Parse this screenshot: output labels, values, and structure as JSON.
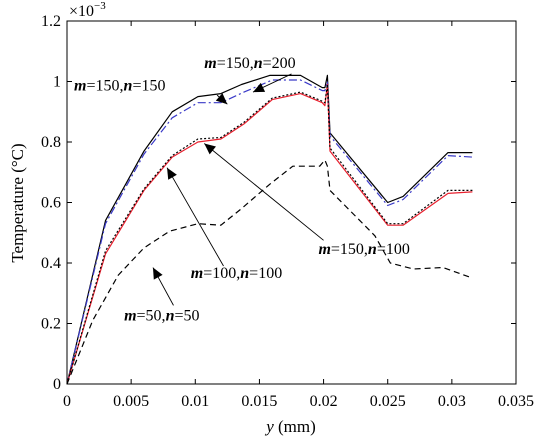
{
  "chart_data": {
    "type": "line",
    "xlabel_var": "y",
    "xlabel_unit": " (mm)",
    "ylabel": "Temperature (°C)",
    "y_multiplier": "×10",
    "y_multiplier_exp": "−3",
    "xlim": [
      0,
      0.035
    ],
    "ylim": [
      0,
      1.2
    ],
    "grid": false,
    "x_ticks": [
      "0",
      "0.005",
      "0.01",
      "0.015",
      "0.02",
      "0.025",
      "0.03",
      "0.035"
    ],
    "x_tick_values": [
      0,
      0.005,
      0.01,
      0.015,
      0.02,
      0.025,
      0.03,
      0.035
    ],
    "y_ticks": [
      "0",
      "0.2",
      "0.4",
      "0.6",
      "0.8",
      "1",
      "1.2"
    ],
    "y_tick_values": [
      0,
      0.2,
      0.4,
      0.6,
      0.8,
      1.0,
      1.2
    ],
    "series": [
      {
        "name": "m=150, n=200",
        "color": "#000000",
        "dash": "",
        "points": [
          [
            0,
            0
          ],
          [
            0.003,
            0.54
          ],
          [
            0.006,
            0.77
          ],
          [
            0.0082,
            0.9
          ],
          [
            0.0102,
            0.95
          ],
          [
            0.012,
            0.96
          ],
          [
            0.0136,
            0.99
          ],
          [
            0.0158,
            1.02
          ],
          [
            0.0182,
            1.02
          ],
          [
            0.0199,
            0.98
          ],
          [
            0.0201,
            0.98
          ],
          [
            0.0203,
            1.02
          ],
          [
            0.0205,
            0.83
          ],
          [
            0.025,
            0.6
          ],
          [
            0.0262,
            0.62
          ],
          [
            0.0297,
            0.765
          ],
          [
            0.0316,
            0.765
          ]
        ]
      },
      {
        "name": "m=150, n=150",
        "color": "#3a3ac8",
        "dash": "8 3 2 3",
        "points": [
          [
            0,
            0
          ],
          [
            0.003,
            0.53
          ],
          [
            0.006,
            0.76
          ],
          [
            0.0082,
            0.88
          ],
          [
            0.0102,
            0.93
          ],
          [
            0.012,
            0.93
          ],
          [
            0.0138,
            0.965
          ],
          [
            0.016,
            1.005
          ],
          [
            0.0182,
            1.005
          ],
          [
            0.0199,
            0.97
          ],
          [
            0.0201,
            0.97
          ],
          [
            0.0203,
            1.0
          ],
          [
            0.0205,
            0.82
          ],
          [
            0.025,
            0.59
          ],
          [
            0.0262,
            0.61
          ],
          [
            0.0297,
            0.755
          ],
          [
            0.0316,
            0.75
          ]
        ]
      },
      {
        "name": "m=150, n=100",
        "color": "#e8202e",
        "dash": "",
        "points": [
          [
            0,
            0
          ],
          [
            0.003,
            0.43
          ],
          [
            0.006,
            0.64
          ],
          [
            0.0082,
            0.75
          ],
          [
            0.0102,
            0.8
          ],
          [
            0.012,
            0.81
          ],
          [
            0.0138,
            0.86
          ],
          [
            0.016,
            0.94
          ],
          [
            0.0182,
            0.96
          ],
          [
            0.0199,
            0.93
          ],
          [
            0.0201,
            0.92
          ],
          [
            0.0203,
            0.99
          ],
          [
            0.0205,
            0.77
          ],
          [
            0.025,
            0.525
          ],
          [
            0.0262,
            0.525
          ],
          [
            0.0297,
            0.63
          ],
          [
            0.0316,
            0.635
          ]
        ]
      },
      {
        "name": "m=100, n=100",
        "color": "#000000",
        "dash": "2 2",
        "points": [
          [
            0,
            0
          ],
          [
            0.003,
            0.44
          ],
          [
            0.006,
            0.645
          ],
          [
            0.0082,
            0.755
          ],
          [
            0.0102,
            0.81
          ],
          [
            0.012,
            0.815
          ],
          [
            0.0138,
            0.865
          ],
          [
            0.016,
            0.945
          ],
          [
            0.0182,
            0.965
          ],
          [
            0.0199,
            0.935
          ],
          [
            0.0201,
            0.93
          ],
          [
            0.0203,
            0.99
          ],
          [
            0.0205,
            0.78
          ],
          [
            0.025,
            0.53
          ],
          [
            0.0262,
            0.53
          ],
          [
            0.0297,
            0.64
          ],
          [
            0.0316,
            0.64
          ]
        ]
      },
      {
        "name": "m=50, n=50",
        "color": "#000000",
        "dash": "6 4",
        "points": [
          [
            0,
            0
          ],
          [
            0.002,
            0.21
          ],
          [
            0.004,
            0.36
          ],
          [
            0.006,
            0.45
          ],
          [
            0.008,
            0.505
          ],
          [
            0.0102,
            0.53
          ],
          [
            0.012,
            0.525
          ],
          [
            0.0136,
            0.58
          ],
          [
            0.0158,
            0.66
          ],
          [
            0.0176,
            0.72
          ],
          [
            0.0197,
            0.72
          ],
          [
            0.0201,
            0.74
          ],
          [
            0.0203,
            0.72
          ],
          [
            0.0205,
            0.64
          ],
          [
            0.024,
            0.49
          ],
          [
            0.0252,
            0.4
          ],
          [
            0.027,
            0.38
          ],
          [
            0.0293,
            0.385
          ],
          [
            0.0316,
            0.35
          ]
        ]
      }
    ],
    "annotations": [
      {
        "name": "m=150, n=200",
        "text_x": 0.0107,
        "text_y": 1.045,
        "arrow_to": [
          0.0145,
          0.965
        ],
        "arrow_from": [
          0.0175,
          1.025
        ]
      },
      {
        "name": "m=150, n=150",
        "text_x": 0.00055,
        "text_y": 0.97,
        "arrow_to": [
          0.0125,
          0.925
        ],
        "arrow_from": [
          0.0117,
          0.955
        ]
      },
      {
        "name": "m=150, n=100",
        "text_x": 0.0196,
        "text_y": 0.43,
        "arrow_to": [
          0.0107,
          0.795
        ],
        "arrow_from": [
          0.02,
          0.475
        ]
      },
      {
        "name": "m=100, n=100",
        "text_x": 0.00965,
        "text_y": 0.35,
        "arrow_to": [
          0.0078,
          0.715
        ],
        "arrow_from": [
          0.0122,
          0.39
        ]
      },
      {
        "name": "m=50, n=50",
        "text_x": 0.00445,
        "text_y": 0.21,
        "arrow_to": [
          0.0067,
          0.385
        ],
        "arrow_from": [
          0.0083,
          0.26
        ]
      }
    ]
  }
}
